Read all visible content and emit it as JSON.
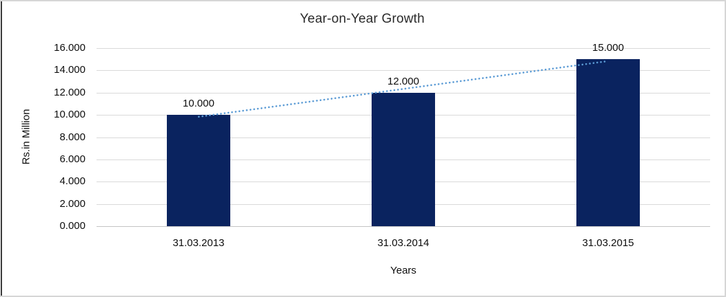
{
  "chart_data": {
    "type": "bar",
    "title": "Year-on-Year Growth",
    "xlabel": "Years",
    "ylabel": "Rs.in Million",
    "categories": [
      "31.03.2013",
      "31.03.2014",
      "31.03.2015"
    ],
    "values": [
      10,
      12,
      15
    ],
    "data_labels": [
      "10.000",
      "12.000",
      "15.000"
    ],
    "y_tick_values": [
      16,
      14,
      12,
      10,
      8,
      6,
      4,
      2,
      0
    ],
    "y_tick_labels": [
      "16.000",
      "14.000",
      "12.000",
      "10.000",
      "8.000",
      "6.000",
      "4.000",
      "2.000",
      "0.000"
    ],
    "ylim": [
      0,
      16
    ],
    "grid": true,
    "legend": "none",
    "trendline": {
      "type": "linear",
      "style": "dotted",
      "start_value": 9.833,
      "end_value": 14.833
    },
    "colors": {
      "bar": "#0a235f",
      "trendline": "#5b9bd5",
      "gridline": "#d9d9d9",
      "axis_line": "#c4c4c4",
      "text": "#0d0d0d"
    }
  }
}
